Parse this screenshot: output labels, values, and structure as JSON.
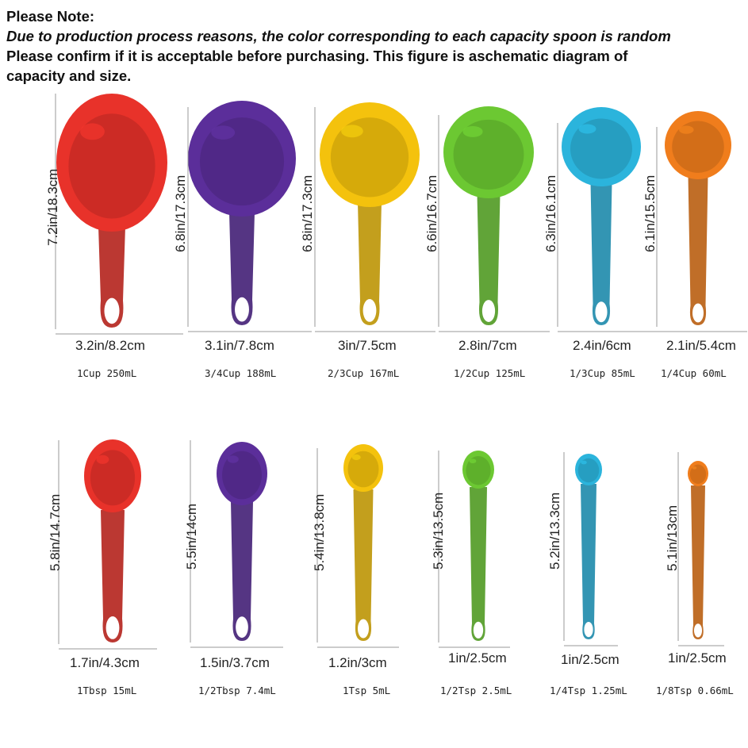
{
  "note": {
    "title": "Please Note:",
    "line1": "Due to production process reasons, the color corresponding to each capacity spoon is random",
    "line2": "Please confirm if it is acceptable before purchasing. This figure is aschematic diagram of",
    "line3": "capacity and size."
  },
  "cups": [
    {
      "height": "7.2in/18.3cm",
      "width": "3.2in/8.2cm",
      "capacity": "1Cup 250mL",
      "color": "#e8322a"
    },
    {
      "height": "6.8in/17.3cm",
      "width": "3.1in/7.8cm",
      "capacity": "3/4Cup 188mL",
      "color": "#5b2e9a"
    },
    {
      "height": "6.8in/17.3cm",
      "width": "3in/7.5cm",
      "capacity": "2/3Cup 167mL",
      "color": "#f4c20d"
    },
    {
      "height": "6.6in/16.7cm",
      "width": "2.8in/7cm",
      "capacity": "1/2Cup 125mL",
      "color": "#6cc832"
    },
    {
      "height": "6.3in/16.1cm",
      "width": "2.4in/6cm",
      "capacity": "1/3Cup 85mL",
      "color": "#2bb4dc"
    },
    {
      "height": "6.1in/15.5cm",
      "width": "2.1in/5.4cm",
      "capacity": "1/4Cup 60mL",
      "color": "#f07d1c"
    }
  ],
  "spoons": [
    {
      "height": "5.8in/14.7cm",
      "width": "1.7in/4.3cm",
      "capacity": "1Tbsp 15mL",
      "color": "#e8322a"
    },
    {
      "height": "5.5in/14cm",
      "width": "1.5in/3.7cm",
      "capacity": "1/2Tbsp 7.4mL",
      "color": "#5b2e9a"
    },
    {
      "height": "5.4in/13.8cm",
      "width": "1.2in/3cm",
      "capacity": "1Tsp 5mL",
      "color": "#f4c20d"
    },
    {
      "height": "5.3in/13.5cm",
      "width": "1in/2.5cm",
      "capacity": "1/2Tsp 2.5mL",
      "color": "#6cc832"
    },
    {
      "height": "5.2in/13.3cm",
      "width": "1in/2.5cm",
      "capacity": "1/4Tsp 1.25mL",
      "color": "#2bb4dc"
    },
    {
      "height": "5.1in/13cm",
      "width": "1in/2.5cm",
      "capacity": "1/8Tsp 0.66mL",
      "color": "#f07d1c"
    }
  ]
}
